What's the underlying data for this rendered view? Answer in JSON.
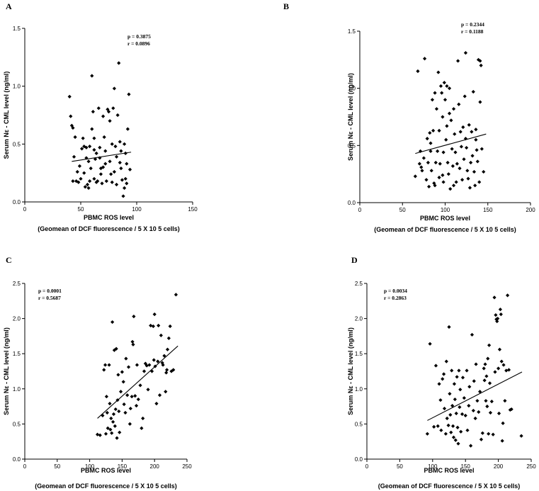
{
  "chart_data": [
    {
      "type": "scatter",
      "panel": "A",
      "stats": [
        "p = 0.3875",
        "r = 0.0896"
      ],
      "ylabel": "Serum Nε - CML level (ng/ml)",
      "xlabel": "PBMC ROS level",
      "xlabel2": "(Geomean of DCF fluorescence / 5 X 10 5 cells)",
      "xlim": [
        0,
        150
      ],
      "ylim": [
        0,
        1.5
      ],
      "xticks": [
        "0",
        "50",
        "100",
        "150"
      ],
      "yticks": [
        "0.0",
        "0.5",
        "1.0",
        "1.5"
      ],
      "regression": [
        [
          42,
          0.35
        ],
        [
          95,
          0.43
        ]
      ],
      "points": [
        [
          40,
          0.91
        ],
        [
          41,
          0.74
        ],
        [
          42,
          0.66
        ],
        [
          43,
          0.64
        ],
        [
          45,
          0.56
        ],
        [
          44,
          0.39
        ],
        [
          43,
          0.18
        ],
        [
          46,
          0.18
        ],
        [
          48,
          0.17
        ],
        [
          50,
          0.2
        ],
        [
          49,
          0.31
        ],
        [
          51,
          0.46
        ],
        [
          53,
          0.48
        ],
        [
          55,
          0.47
        ],
        [
          55,
          0.38
        ],
        [
          53,
          0.25
        ],
        [
          54,
          0.13
        ],
        [
          56,
          0.15
        ],
        [
          57,
          0.12
        ],
        [
          58,
          0.18
        ],
        [
          59,
          0.29
        ],
        [
          60,
          1.09
        ],
        [
          60,
          0.63
        ],
        [
          61,
          0.78
        ],
        [
          62,
          0.55
        ],
        [
          62,
          0.45
        ],
        [
          63,
          0.37
        ],
        [
          62,
          0.2
        ],
        [
          64,
          0.17
        ],
        [
          65,
          0.18
        ],
        [
          66,
          0.81
        ],
        [
          67,
          0.47
        ],
        [
          67,
          0.38
        ],
        [
          68,
          0.24
        ],
        [
          69,
          0.16
        ],
        [
          70,
          0.74
        ],
        [
          71,
          0.56
        ],
        [
          72,
          0.44
        ],
        [
          72,
          0.33
        ],
        [
          73,
          0.18
        ],
        [
          74,
          0.8
        ],
        [
          75,
          0.78
        ],
        [
          76,
          0.7
        ],
        [
          76,
          0.35
        ],
        [
          77,
          0.24
        ],
        [
          78,
          0.17
        ],
        [
          79,
          0.81
        ],
        [
          80,
          0.98
        ],
        [
          81,
          0.48
        ],
        [
          82,
          0.39
        ],
        [
          82,
          0.15
        ],
        [
          83,
          0.75
        ],
        [
          84,
          1.2
        ],
        [
          85,
          0.52
        ],
        [
          86,
          0.29
        ],
        [
          87,
          0.19
        ],
        [
          88,
          0.05
        ],
        [
          89,
          0.5
        ],
        [
          89,
          0.12
        ],
        [
          90,
          0.42
        ],
        [
          91,
          0.33
        ],
        [
          91,
          0.16
        ],
        [
          92,
          0.63
        ],
        [
          93,
          0.93
        ],
        [
          94,
          0.28
        ],
        [
          52,
          0.55
        ],
        [
          58,
          0.48
        ],
        [
          64,
          0.42
        ],
        [
          70,
          0.3
        ],
        [
          78,
          0.5
        ],
        [
          86,
          0.44
        ],
        [
          47,
          0.26
        ],
        [
          57,
          0.35
        ],
        [
          68,
          0.29
        ],
        [
          80,
          0.26
        ],
        [
          85,
          0.34
        ],
        [
          90,
          0.2
        ]
      ]
    },
    {
      "type": "scatter",
      "panel": "B",
      "stats": [
        "p = 0.2344",
        "r = 0.1188"
      ],
      "ylabel": "Serum Nε - CML level (ng/ml)",
      "xlabel": "PBMC ROS level",
      "xlabel2": "(Geomean of DCF fluorescence / 5 X 10 5 cells)",
      "xlim": [
        0,
        200
      ],
      "ylim": [
        0,
        1.5
      ],
      "xticks": [
        "0",
        "50",
        "100",
        "150",
        "200"
      ],
      "yticks": [
        "0.0",
        "0.5",
        "1.0",
        "1.5"
      ],
      "regression": [
        [
          65,
          0.43
        ],
        [
          148,
          0.6
        ]
      ],
      "points": [
        [
          65,
          0.23
        ],
        [
          68,
          1.15
        ],
        [
          70,
          0.34
        ],
        [
          71,
          0.45
        ],
        [
          73,
          0.28
        ],
        [
          75,
          0.39
        ],
        [
          76,
          1.26
        ],
        [
          78,
          0.2
        ],
        [
          79,
          0.56
        ],
        [
          80,
          0.35
        ],
        [
          81,
          0.14
        ],
        [
          82,
          0.61
        ],
        [
          83,
          0.45
        ],
        [
          84,
          0.28
        ],
        [
          85,
          0.9
        ],
        [
          86,
          0.63
        ],
        [
          87,
          0.17
        ],
        [
          88,
          0.96
        ],
        [
          89,
          0.35
        ],
        [
          90,
          0.82
        ],
        [
          91,
          0.45
        ],
        [
          92,
          1.14
        ],
        [
          93,
          0.63
        ],
        [
          93,
          0.22
        ],
        [
          94,
          0.34
        ],
        [
          95,
          1.02
        ],
        [
          96,
          0.96
        ],
        [
          97,
          0.75
        ],
        [
          98,
          0.44
        ],
        [
          98,
          0.18
        ],
        [
          99,
          1.05
        ],
        [
          100,
          0.9
        ],
        [
          101,
          0.55
        ],
        [
          102,
          1.02
        ],
        [
          103,
          0.35
        ],
        [
          104,
          0.25
        ],
        [
          105,
          1.0
        ],
        [
          105,
          0.78
        ],
        [
          106,
          0.12
        ],
        [
          107,
          0.72
        ],
        [
          108,
          0.47
        ],
        [
          109,
          0.32
        ],
        [
          110,
          0.15
        ],
        [
          111,
          0.6
        ],
        [
          112,
          0.44
        ],
        [
          113,
          0.18
        ],
        [
          114,
          0.34
        ],
        [
          115,
          1.24
        ],
        [
          116,
          0.86
        ],
        [
          117,
          0.3
        ],
        [
          118,
          0.62
        ],
        [
          119,
          0.49
        ],
        [
          120,
          0.2
        ],
        [
          121,
          0.66
        ],
        [
          122,
          0.38
        ],
        [
          123,
          0.93
        ],
        [
          124,
          1.31
        ],
        [
          125,
          0.48
        ],
        [
          126,
          0.28
        ],
        [
          127,
          0.21
        ],
        [
          128,
          0.68
        ],
        [
          129,
          0.13
        ],
        [
          130,
          0.35
        ],
        [
          131,
          0.62
        ],
        [
          132,
          0.41
        ],
        [
          133,
          0.97
        ],
        [
          134,
          0.27
        ],
        [
          135,
          0.15
        ],
        [
          136,
          0.55
        ],
        [
          137,
          0.46
        ],
        [
          138,
          0.36
        ],
        [
          139,
          1.25
        ],
        [
          140,
          0.18
        ],
        [
          141,
          1.24
        ],
        [
          141,
          0.88
        ],
        [
          142,
          1.2
        ],
        [
          143,
          0.47
        ],
        [
          145,
          0.27
        ],
        [
          72,
          0.31
        ],
        [
          83,
          0.52
        ],
        [
          97,
          0.24
        ],
        [
          110,
          0.82
        ],
        [
          124,
          0.56
        ],
        [
          136,
          0.64
        ],
        [
          88,
          0.15
        ],
        [
          102,
          0.67
        ]
      ]
    },
    {
      "type": "scatter",
      "panel": "C",
      "stats": [
        "p = 0.0001",
        "r = 0.5687"
      ],
      "ylabel": "Serum Nε - CML level (ng/ml)",
      "xlabel": "PBMC ROS level",
      "xlabel2": "(Geomean of DCF fluorescence / 5 X 10 5 cells)",
      "xlim": [
        0,
        250
      ],
      "ylim": [
        0,
        2.5
      ],
      "xticks": [
        "0",
        "50",
        "100",
        "150",
        "200",
        "250"
      ],
      "yticks": [
        "0.0",
        "0.5",
        "1.0",
        "1.5",
        "2.0",
        "2.5"
      ],
      "regression": [
        [
          112,
          0.58
        ],
        [
          236,
          1.61
        ]
      ],
      "points": [
        [
          112,
          0.35
        ],
        [
          116,
          0.34
        ],
        [
          120,
          0.62
        ],
        [
          122,
          1.27
        ],
        [
          124,
          1.34
        ],
        [
          125,
          0.36
        ],
        [
          126,
          0.89
        ],
        [
          127,
          0.66
        ],
        [
          128,
          0.44
        ],
        [
          130,
          1.34
        ],
        [
          131,
          0.79
        ],
        [
          132,
          0.42
        ],
        [
          133,
          0.58
        ],
        [
          134,
          0.37
        ],
        [
          135,
          1.95
        ],
        [
          136,
          0.53
        ],
        [
          137,
          0.64
        ],
        [
          138,
          1.55
        ],
        [
          139,
          0.47
        ],
        [
          140,
          0.71
        ],
        [
          141,
          1.57
        ],
        [
          142,
          0.3
        ],
        [
          143,
          0.84
        ],
        [
          144,
          1.2
        ],
        [
          145,
          0.68
        ],
        [
          146,
          0.38
        ],
        [
          148,
          0.96
        ],
        [
          150,
          1.24
        ],
        [
          152,
          1.1
        ],
        [
          153,
          0.78
        ],
        [
          155,
          0.66
        ],
        [
          156,
          1.43
        ],
        [
          158,
          0.91
        ],
        [
          160,
          1.31
        ],
        [
          162,
          0.5
        ],
        [
          163,
          0.72
        ],
        [
          165,
          0.89
        ],
        [
          166,
          1.67
        ],
        [
          167,
          1.63
        ],
        [
          168,
          2.03
        ],
        [
          170,
          0.9
        ],
        [
          172,
          0.76
        ],
        [
          173,
          1.34
        ],
        [
          175,
          0.85
        ],
        [
          178,
          1.05
        ],
        [
          180,
          0.44
        ],
        [
          182,
          0.58
        ],
        [
          184,
          1.25
        ],
        [
          186,
          1.36
        ],
        [
          188,
          1.33
        ],
        [
          190,
          0.99
        ],
        [
          192,
          1.34
        ],
        [
          194,
          1.9
        ],
        [
          196,
          1.25
        ],
        [
          198,
          1.89
        ],
        [
          199,
          1.41
        ],
        [
          200,
          2.06
        ],
        [
          201,
          1.32
        ],
        [
          203,
          0.79
        ],
        [
          205,
          1.39
        ],
        [
          206,
          1.9
        ],
        [
          208,
          0.91
        ],
        [
          210,
          1.76
        ],
        [
          212,
          1.37
        ],
        [
          213,
          1.34
        ],
        [
          215,
          1.47
        ],
        [
          217,
          0.96
        ],
        [
          218,
          1.23
        ],
        [
          219,
          1.27
        ],
        [
          220,
          1.56
        ],
        [
          222,
          1.72
        ],
        [
          224,
          1.89
        ],
        [
          226,
          1.25
        ],
        [
          229,
          1.27
        ],
        [
          233,
          2.34
        ]
      ]
    },
    {
      "type": "scatter",
      "panel": "D",
      "stats": [
        "p = 0.0034",
        "r = 0.2863"
      ],
      "ylabel": "Serum Nε - CML level (ng/ml)",
      "xlabel": "PBMC ROS level",
      "xlabel2": "(Geomean of DCF fluorescence / 5 X 10 5 cells)",
      "xlim": [
        0,
        250
      ],
      "ylim": [
        0,
        2.5
      ],
      "xticks": [
        "0",
        "50",
        "100",
        "150",
        "200",
        "250"
      ],
      "yticks": [
        "0.0",
        "0.5",
        "1.0",
        "1.5",
        "2.0",
        "2.5"
      ],
      "regression": [
        [
          92,
          0.55
        ],
        [
          236,
          1.24
        ]
      ],
      "points": [
        [
          92,
          0.36
        ],
        [
          96,
          1.64
        ],
        [
          102,
          0.46
        ],
        [
          105,
          1.33
        ],
        [
          108,
          0.47
        ],
        [
          110,
          1.07
        ],
        [
          112,
          0.84
        ],
        [
          113,
          0.41
        ],
        [
          115,
          1.14
        ],
        [
          117,
          1.21
        ],
        [
          118,
          0.72
        ],
        [
          120,
          0.36
        ],
        [
          121,
          1.39
        ],
        [
          122,
          0.58
        ],
        [
          124,
          0.48
        ],
        [
          125,
          1.88
        ],
        [
          126,
          0.93
        ],
        [
          127,
          0.63
        ],
        [
          128,
          0.38
        ],
        [
          129,
          1.26
        ],
        [
          130,
          0.76
        ],
        [
          131,
          0.47
        ],
        [
          132,
          0.31
        ],
        [
          133,
          1.07
        ],
        [
          134,
          0.85
        ],
        [
          135,
          0.27
        ],
        [
          136,
          0.65
        ],
        [
          137,
          1.17
        ],
        [
          138,
          0.45
        ],
        [
          139,
          0.22
        ],
        [
          140,
          1.26
        ],
        [
          141,
          0.74
        ],
        [
          142,
          0.99
        ],
        [
          143,
          0.39
        ],
        [
          145,
          0.64
        ],
        [
          146,
          1.16
        ],
        [
          148,
          0.87
        ],
        [
          150,
          0.62
        ],
        [
          152,
          1.26
        ],
        [
          153,
          0.41
        ],
        [
          155,
          0.76
        ],
        [
          156,
          1.03
        ],
        [
          158,
          0.19
        ],
        [
          160,
          1.77
        ],
        [
          162,
          0.69
        ],
        [
          163,
          1.11
        ],
        [
          165,
          0.58
        ],
        [
          166,
          1.35
        ],
        [
          168,
          0.83
        ],
        [
          170,
          0.67
        ],
        [
          172,
          0.96
        ],
        [
          174,
          0.28
        ],
        [
          176,
          0.37
        ],
        [
          178,
          1.29
        ],
        [
          179,
          1.12
        ],
        [
          180,
          1.35
        ],
        [
          181,
          0.83
        ],
        [
          182,
          1.18
        ],
        [
          183,
          0.75
        ],
        [
          184,
          1.43
        ],
        [
          185,
          0.36
        ],
        [
          186,
          1.62
        ],
        [
          187,
          1.08
        ],
        [
          188,
          0.66
        ],
        [
          190,
          0.82
        ],
        [
          192,
          0.35
        ],
        [
          194,
          2.3
        ],
        [
          195,
          1.24
        ],
        [
          196,
          2.05
        ],
        [
          197,
          1.99
        ],
        [
          198,
          1.96
        ],
        [
          199,
          2.0
        ],
        [
          200,
          1.29
        ],
        [
          201,
          0.65
        ],
        [
          202,
          1.56
        ],
        [
          203,
          2.13
        ],
        [
          204,
          2.06
        ],
        [
          205,
          1.39
        ],
        [
          206,
          0.26
        ],
        [
          207,
          0.51
        ],
        [
          208,
          1.34
        ],
        [
          210,
          0.83
        ],
        [
          212,
          1.26
        ],
        [
          214,
          2.33
        ],
        [
          216,
          1.27
        ],
        [
          218,
          0.7
        ],
        [
          220,
          0.71
        ],
        [
          235,
          0.33
        ]
      ]
    }
  ]
}
